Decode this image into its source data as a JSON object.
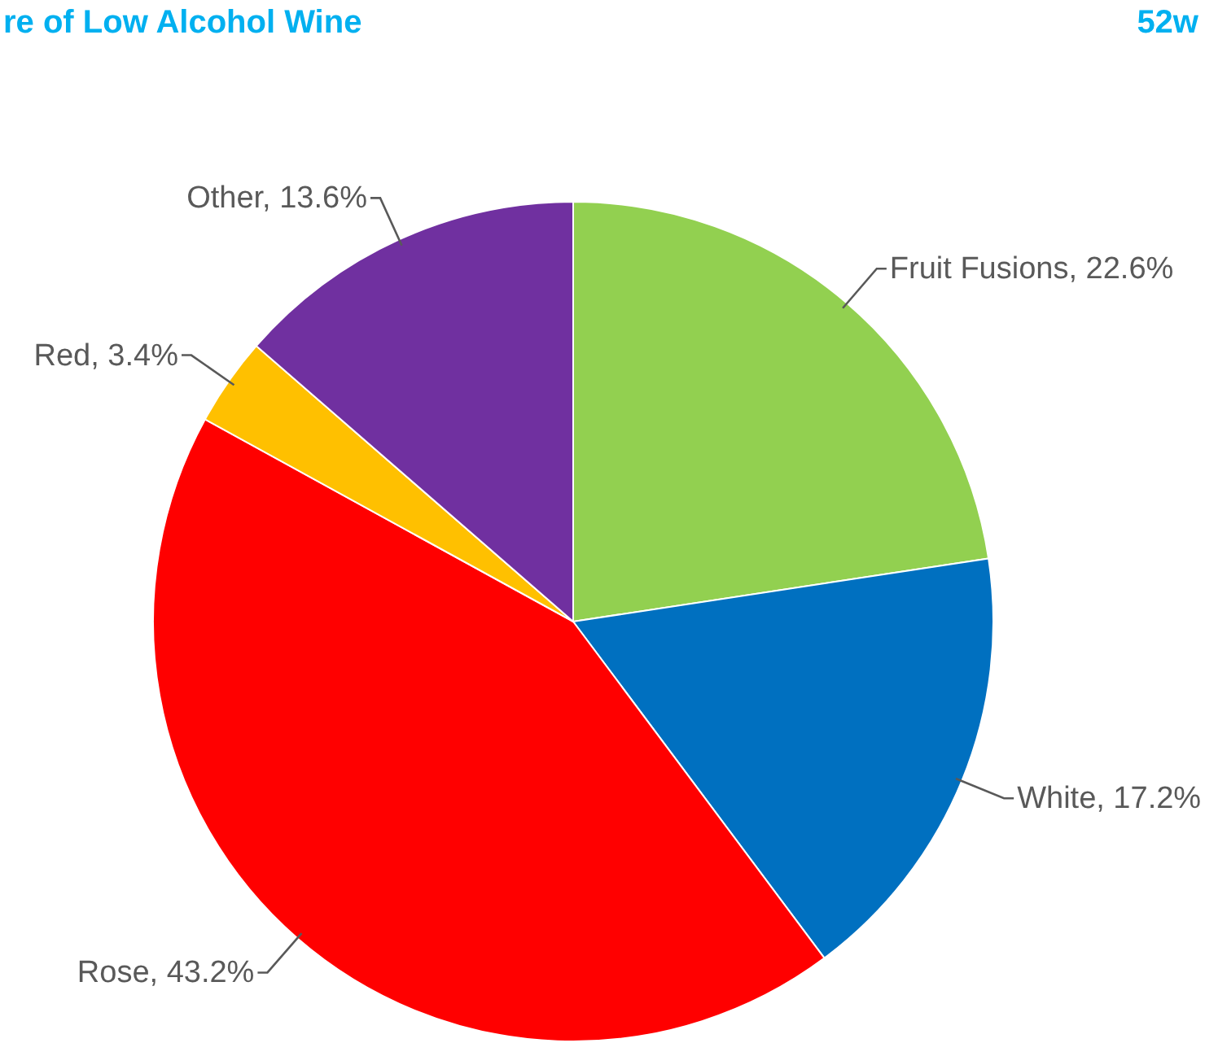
{
  "chart_data": {
    "type": "pie",
    "title": "re of Low Alcohol Wine",
    "annotations": [
      "52w"
    ],
    "categories": [
      "Fruit Fusions",
      "White",
      "Rose",
      "Red",
      "Other"
    ],
    "values": [
      22.6,
      17.2,
      43.2,
      3.4,
      13.6
    ],
    "colors": [
      "#92d050",
      "#0070c0",
      "#ff0000",
      "#ffc000",
      "#7030a0"
    ],
    "value_labels": [
      "22.6%",
      "17.2%",
      "43.2%",
      "3.4%",
      "13.6%"
    ]
  }
}
